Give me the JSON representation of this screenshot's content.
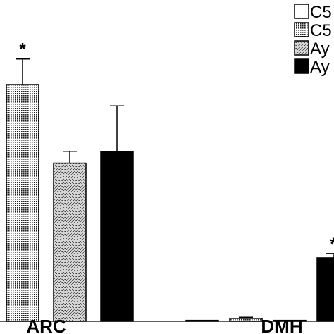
{
  "chart_data": {
    "type": "bar",
    "title": "",
    "xlabel": "",
    "ylabel": "",
    "categories": [
      "ARC",
      "DMH"
    ],
    "series": [
      {
        "name": "C5",
        "pattern": "white",
        "values": [
          null,
          0.4
        ],
        "errors": [
          null,
          0
        ]
      },
      {
        "name": "C5",
        "pattern": "grid",
        "values": [
          100,
          1.2
        ],
        "errors": [
          10.8,
          0.5
        ]
      },
      {
        "name": "Ay",
        "pattern": "stipple",
        "values": [
          66.8,
          0.4
        ],
        "errors": [
          5.0,
          0
        ]
      },
      {
        "name": "Ay",
        "pattern": "black",
        "values": [
          71.6,
          26.8
        ],
        "errors": [
          19.4,
          1.8
        ]
      }
    ],
    "significance": [
      {
        "category": "ARC",
        "series_index": 1,
        "label": "*"
      },
      {
        "category": "DMH",
        "series_index": 3,
        "label": "*"
      }
    ],
    "ylim": [
      0,
      130
    ],
    "grid": false,
    "legend_position": "top-right",
    "colors": {
      "outline": "#000000",
      "fill_black": "#000000",
      "fill_white": "#ffffff"
    }
  }
}
